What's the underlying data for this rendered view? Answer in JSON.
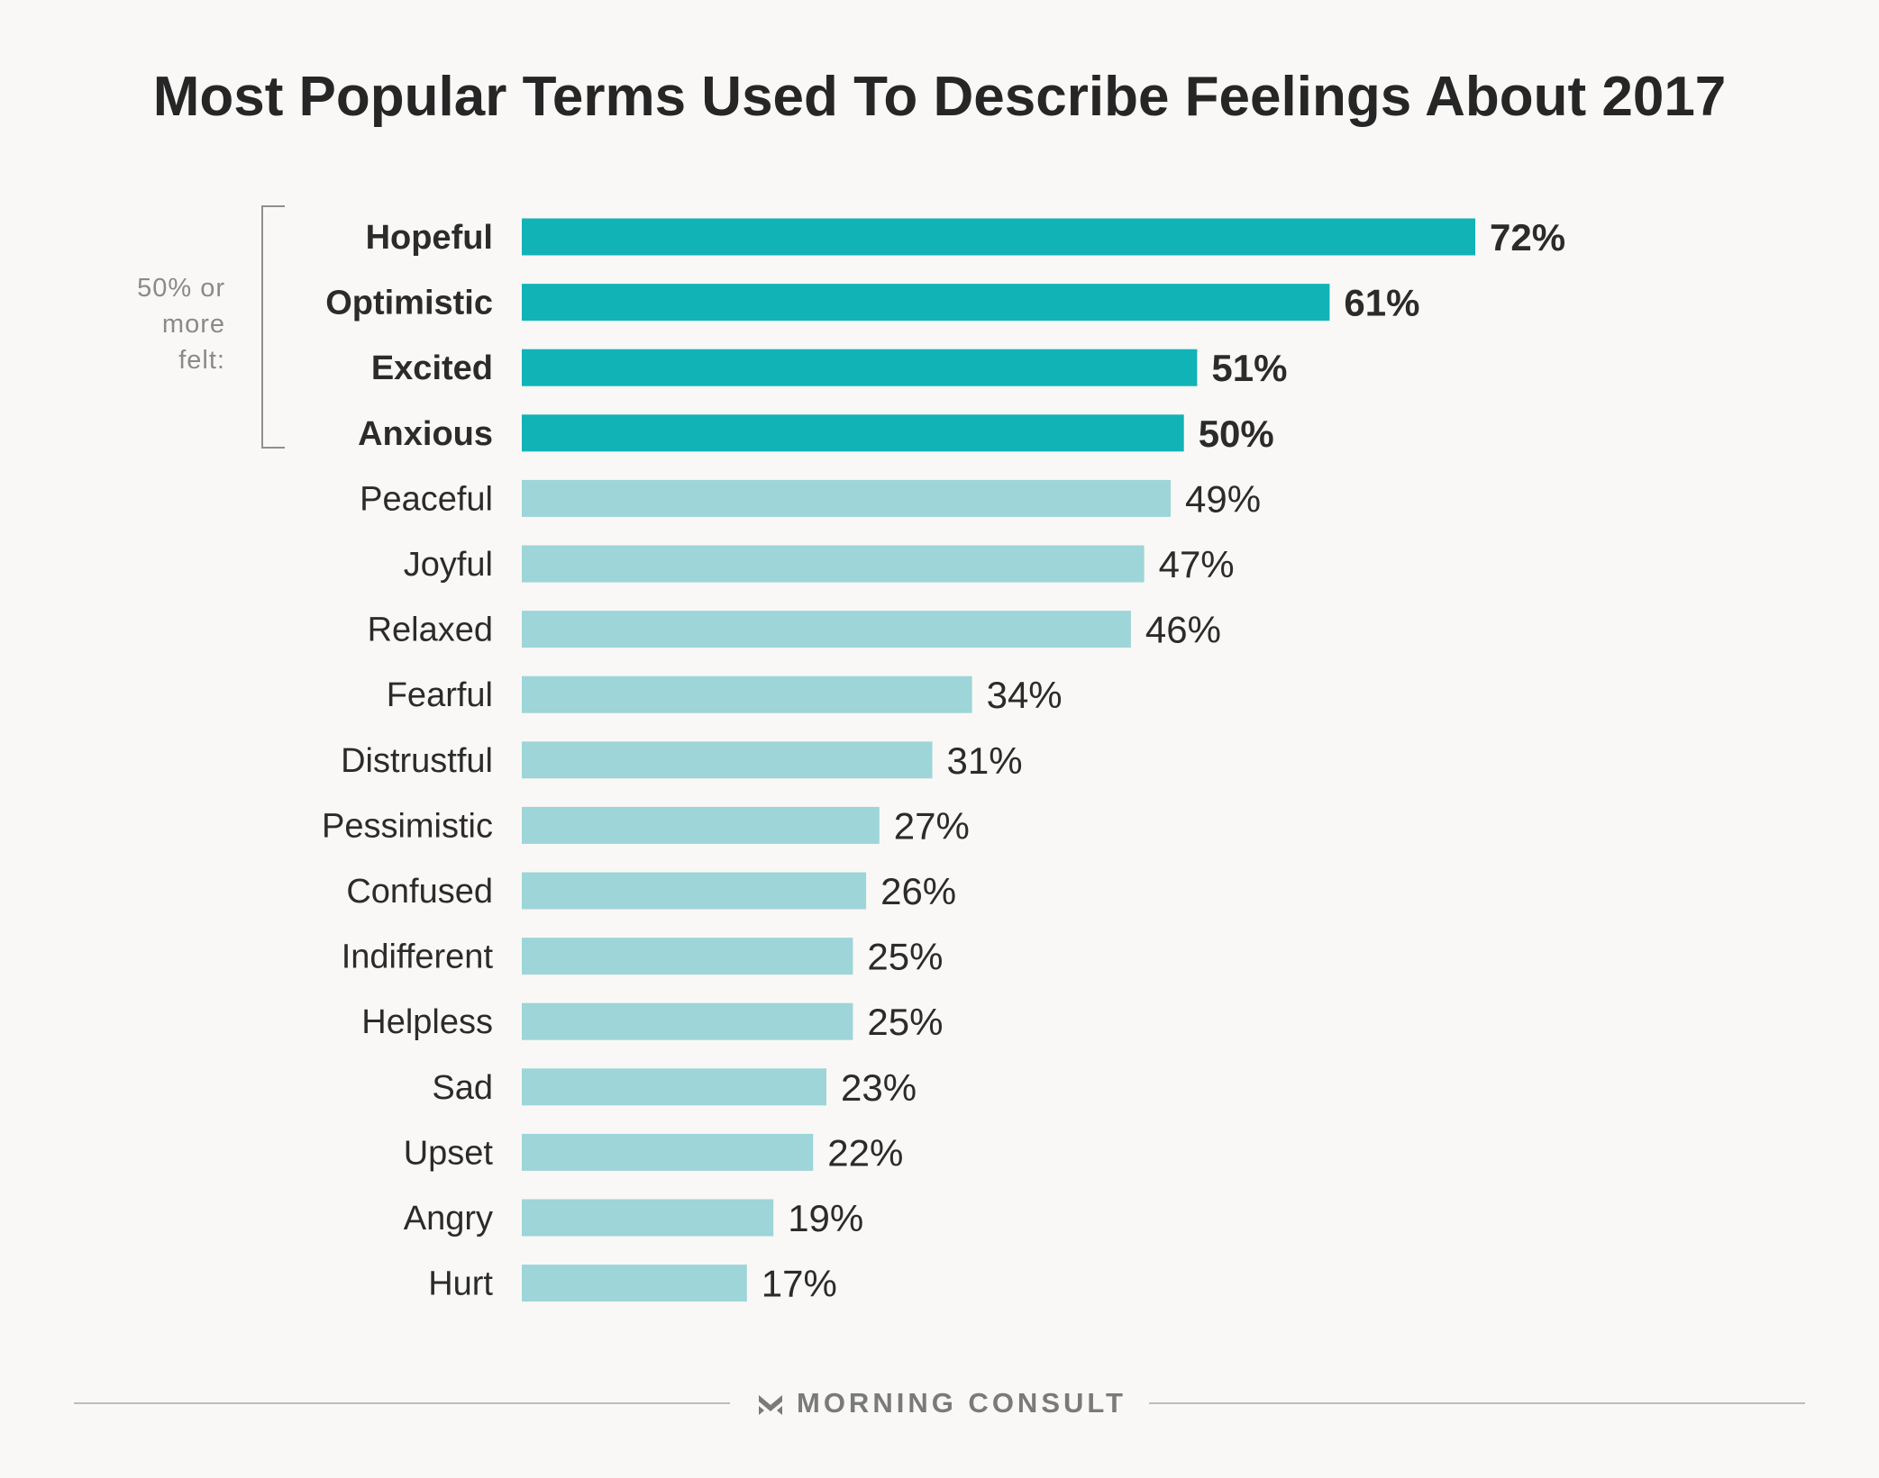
{
  "chart_data": {
    "type": "bar",
    "orientation": "horizontal",
    "title": "Most Popular Terms Used To Describe Feelings About 2017",
    "categories": [
      "Hopeful",
      "Optimistic",
      "Excited",
      "Anxious",
      "Peaceful",
      "Joyful",
      "Relaxed",
      "Fearful",
      "Distrustful",
      "Pessimistic",
      "Confused",
      "Indifferent",
      "Helpless",
      "Sad",
      "Upset",
      "Angry",
      "Hurt"
    ],
    "values": [
      72,
      61,
      51,
      50,
      49,
      47,
      46,
      34,
      31,
      27,
      26,
      25,
      25,
      23,
      22,
      19,
      17
    ],
    "value_labels": [
      "72%",
      "61%",
      "51%",
      "50%",
      "49%",
      "47%",
      "46%",
      "34%",
      "31%",
      "27%",
      "26%",
      "25%",
      "25%",
      "23%",
      "22%",
      "19%",
      "17%"
    ],
    "highlight_threshold": 50,
    "xlim": [
      0,
      72
    ],
    "xlabel": "",
    "ylabel": "",
    "grid": false,
    "colors": {
      "highlight": "#11b3b6",
      "normal": "#9dd5d8"
    },
    "annotation": {
      "text_lines": [
        "50% or",
        "more",
        "felt:"
      ]
    }
  },
  "footer": {
    "brand": "MORNING CONSULT",
    "logo_icon": "morning-consult-logo-icon",
    "logo_color": "#7a7a7a"
  }
}
